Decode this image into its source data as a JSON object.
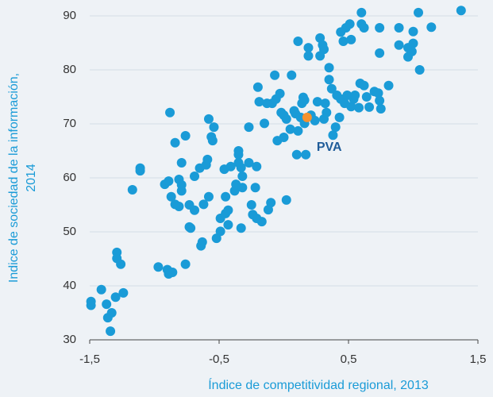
{
  "chart_data": {
    "type": "scatter",
    "xlabel": "Índice de competitividad regional, 2013",
    "ylabel": [
      "Indice de sociedad de la información,",
      "2014"
    ],
    "xlim": [
      -1.5,
      1.5
    ],
    "ylim": [
      30,
      90
    ],
    "xticks": [
      {
        "value": -1.5,
        "label": "-1,5"
      },
      {
        "value": -0.5,
        "label": "-0,5"
      },
      {
        "value": 0.5,
        "label": "0,5"
      },
      {
        "value": 1.5,
        "label": "1,5"
      }
    ],
    "yticks": [
      30,
      40,
      50,
      60,
      70,
      80,
      90
    ],
    "grid": true,
    "series": [
      {
        "color": "#1a9bd7",
        "x": [
          -1.49,
          -1.49,
          -1.41,
          -1.37,
          -1.36,
          -1.33,
          -1.34,
          -1.3,
          -1.29,
          -1.29,
          -1.26,
          -1.24,
          -1.17,
          -1.11,
          -1.11,
          -0.97,
          -0.9,
          -0.89,
          -0.86,
          -0.76,
          -0.92,
          -0.88,
          -0.84,
          -0.89,
          -0.87,
          -0.84,
          -0.81,
          -0.79,
          -0.79,
          -0.81,
          -0.79,
          -0.76,
          -0.73,
          -0.72,
          -0.69,
          -0.73,
          -0.69,
          -0.65,
          -0.63,
          -0.64,
          -0.62,
          -0.6,
          -0.59,
          -0.58,
          -0.58,
          -0.56,
          -0.55,
          -0.54,
          -0.52,
          -0.49,
          -0.49,
          -0.46,
          -0.45,
          -0.43,
          -0.45,
          -0.43,
          -0.41,
          -0.38,
          -0.37,
          -0.35,
          -0.35,
          -0.33,
          -0.35,
          -0.32,
          -0.32,
          -0.33,
          -0.27,
          -0.27,
          -0.25,
          -0.24,
          -0.22,
          -0.21,
          -0.21,
          -0.2,
          -0.19,
          -0.17,
          -0.15,
          -0.13,
          -0.12,
          -0.1,
          -0.07,
          -0.09,
          -0.06,
          -0.05,
          -0.03,
          -0.02,
          0.0,
          0.0,
          0.02,
          0.02,
          0.05,
          0.06,
          0.08,
          0.09,
          0.1,
          0.11,
          0.11,
          0.13,
          0.14,
          0.15,
          0.15,
          0.16,
          0.17,
          0.16,
          0.19,
          0.19,
          0.21,
          0.24,
          0.26,
          0.28,
          0.28,
          0.3,
          0.31,
          0.31,
          0.32,
          0.33,
          0.35,
          0.35,
          0.37,
          0.38,
          0.4,
          0.41,
          0.43,
          0.44,
          0.44,
          0.46,
          0.47,
          0.48,
          0.49,
          0.51,
          0.52,
          0.52,
          0.54,
          0.55,
          0.58,
          0.6,
          0.6,
          0.62,
          0.59,
          0.62,
          0.64,
          0.66,
          0.7,
          0.73,
          0.74,
          0.75,
          0.74,
          0.74,
          0.81,
          0.89,
          0.89,
          0.96,
          0.96,
          0.99,
          1.0,
          1.0,
          1.04,
          1.05,
          1.14,
          1.37
        ],
        "values": [
          37.1,
          36.4,
          39.3,
          36.6,
          34.1,
          35.0,
          31.6,
          37.9,
          46.2,
          45.1,
          44.0,
          38.7,
          57.8,
          61.8,
          61.3,
          43.5,
          43,
          42.2,
          42.5,
          44,
          58.8,
          72.1,
          66.5,
          59.4,
          56.5,
          55.1,
          54.7,
          57.6,
          62.8,
          59.7,
          58.7,
          67.8,
          55,
          50.7,
          54,
          50.9,
          60.3,
          61.8,
          48.1,
          47.4,
          55.1,
          62.4,
          63.4,
          56.5,
          70.9,
          67.6,
          66.9,
          69.4,
          48.8,
          50.1,
          52.5,
          61.6,
          56.5,
          54,
          53.4,
          51.3,
          62.1,
          57.6,
          58.8,
          65,
          64.3,
          61.9,
          62.8,
          60.3,
          58.2,
          50.7,
          62.8,
          69.4,
          55,
          53.2,
          58.2,
          62.1,
          52.5,
          76.8,
          74.1,
          51.9,
          70.1,
          73.8,
          54.1,
          55.4,
          79,
          73.8,
          74.6,
          66.9,
          75.6,
          72.1,
          71.6,
          67.5,
          55.9,
          70.9,
          69,
          79,
          72.4,
          71.9,
          64.3,
          85.3,
          68.7,
          71.2,
          73.8,
          74.9,
          70.9,
          70.1,
          64.3,
          74.4,
          82.6,
          84.1,
          71.6,
          70.6,
          74.1,
          82.6,
          85.9,
          84.6,
          83.8,
          70.9,
          73.8,
          72.1,
          78.2,
          80.4,
          76.5,
          67.9,
          69.4,
          75.3,
          71.2,
          87,
          74.6,
          85.3,
          73.8,
          87.8,
          75.3,
          88.5,
          73.2,
          85.6,
          74.6,
          75.3,
          73,
          88.5,
          90.6,
          87.8,
          77.5,
          77.1,
          75,
          73.1,
          76,
          75.7,
          74.3,
          72.8,
          83.1,
          87.8,
          77.1,
          87.8,
          84.6,
          82.4,
          84.1,
          83.4,
          87.1,
          84.9,
          90.6,
          80,
          87.9,
          91
        ]
      },
      {
        "name": "PVA",
        "color": "#f5922f",
        "x": [
          0.18
        ],
        "values": [
          71.2
        ]
      }
    ]
  }
}
